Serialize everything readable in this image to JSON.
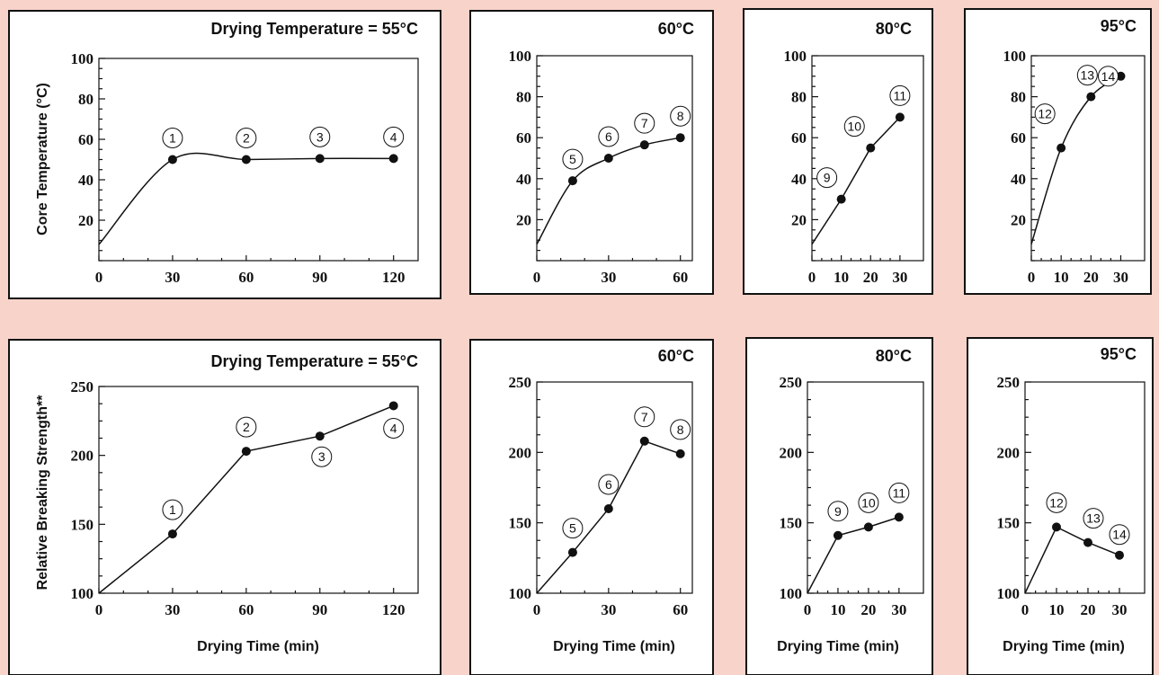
{
  "chart_data": [
    {
      "id": "core-55",
      "type": "line",
      "title": "Drying Temperature = 55°C",
      "xlabel": "",
      "ylabel": "Core Temperature (°C)",
      "xlim": [
        0,
        130
      ],
      "ylim": [
        0,
        100
      ],
      "xticks": [
        0,
        30,
        60,
        90,
        120
      ],
      "yticks": [
        20,
        40,
        60,
        80,
        100
      ],
      "grid": false,
      "smooth": true,
      "x": [
        0,
        30,
        60,
        90,
        120
      ],
      "y": [
        8,
        50,
        50,
        50.5,
        50.5
      ],
      "point_labels": [
        "",
        "1",
        "2",
        "3",
        "4"
      ]
    },
    {
      "id": "core-60",
      "type": "line",
      "title": "60°C",
      "xlabel": "",
      "ylabel": "",
      "xlim": [
        0,
        65
      ],
      "ylim": [
        0,
        100
      ],
      "xticks": [
        0,
        30,
        60
      ],
      "yticks": [
        20,
        40,
        60,
        80,
        100
      ],
      "grid": false,
      "smooth": true,
      "x": [
        0,
        15,
        30,
        45,
        60
      ],
      "y": [
        8,
        39,
        50,
        56.5,
        60
      ],
      "point_labels": [
        "",
        "5",
        "6",
        "7",
        "8"
      ]
    },
    {
      "id": "core-80",
      "type": "line",
      "title": "80°C",
      "xlabel": "",
      "ylabel": "",
      "xlim": [
        0,
        38
      ],
      "ylim": [
        0,
        100
      ],
      "xticks": [
        0,
        10,
        20,
        30
      ],
      "yticks": [
        20,
        40,
        60,
        80,
        100
      ],
      "grid": false,
      "smooth": false,
      "x": [
        0,
        10,
        20,
        30
      ],
      "y": [
        8,
        30,
        55,
        70
      ],
      "point_labels": [
        "",
        "9",
        "10",
        "11"
      ]
    },
    {
      "id": "core-95",
      "type": "line",
      "title": "95°C",
      "xlabel": "",
      "ylabel": "",
      "xlim": [
        0,
        38
      ],
      "ylim": [
        0,
        100
      ],
      "xticks": [
        0,
        10,
        20,
        30
      ],
      "yticks": [
        20,
        40,
        60,
        80,
        100
      ],
      "grid": false,
      "smooth": true,
      "x": [
        0,
        10,
        20,
        30
      ],
      "y": [
        8,
        55,
        80,
        90
      ],
      "point_labels": [
        "",
        "12",
        "13",
        "14"
      ]
    },
    {
      "id": "strength-55",
      "type": "line",
      "title": "Drying Temperature = 55°C",
      "xlabel": "Drying Time (min)",
      "ylabel": "Relative Breaking Strength**",
      "xlim": [
        0,
        130
      ],
      "ylim": [
        100,
        250
      ],
      "xticks": [
        0,
        30,
        60,
        90,
        120
      ],
      "yticks": [
        100,
        150,
        200,
        250
      ],
      "grid": false,
      "smooth": false,
      "x": [
        0,
        30,
        60,
        90,
        120
      ],
      "y": [
        100,
        143,
        203,
        214,
        236
      ],
      "point_labels": [
        "",
        "1",
        "2",
        "3",
        "4"
      ]
    },
    {
      "id": "strength-60",
      "type": "line",
      "title": "60°C",
      "xlabel": "Drying Time (min)",
      "ylabel": "",
      "xlim": [
        0,
        65
      ],
      "ylim": [
        100,
        250
      ],
      "xticks": [
        0,
        30,
        60
      ],
      "yticks": [
        100,
        150,
        200,
        250
      ],
      "grid": false,
      "smooth": false,
      "x": [
        0,
        15,
        30,
        45,
        60
      ],
      "y": [
        100,
        129,
        160,
        208,
        199
      ],
      "point_labels": [
        "",
        "5",
        "6",
        "7",
        "8"
      ]
    },
    {
      "id": "strength-80",
      "type": "line",
      "title": "80°C",
      "xlabel": "Drying Time (min)",
      "ylabel": "",
      "xlim": [
        0,
        38
      ],
      "ylim": [
        100,
        250
      ],
      "xticks": [
        0,
        10,
        20,
        30
      ],
      "yticks": [
        100,
        150,
        200,
        250
      ],
      "grid": false,
      "smooth": false,
      "x": [
        0,
        10,
        20,
        30
      ],
      "y": [
        100,
        141,
        147,
        154
      ],
      "point_labels": [
        "",
        "9",
        "10",
        "11"
      ]
    },
    {
      "id": "strength-95",
      "type": "line",
      "title": "95°C",
      "xlabel": "Drying Time (min)",
      "ylabel": "",
      "xlim": [
        0,
        38
      ],
      "ylim": [
        100,
        250
      ],
      "xticks": [
        0,
        10,
        20,
        30
      ],
      "yticks": [
        100,
        150,
        200,
        250
      ],
      "grid": false,
      "smooth": false,
      "x": [
        0,
        10,
        20,
        30
      ],
      "y": [
        100,
        147,
        136,
        127
      ],
      "point_labels": [
        "",
        "12",
        "13",
        "14"
      ]
    }
  ]
}
